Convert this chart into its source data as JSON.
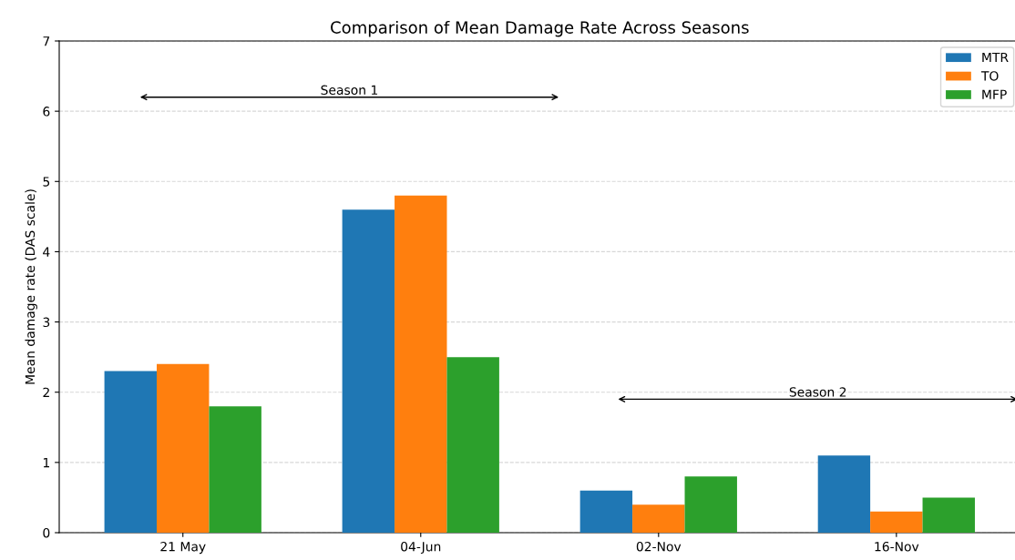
{
  "chart_data": {
    "type": "bar",
    "title": "Comparison of Mean Damage Rate Across Seasons",
    "ylabel": "Mean damage rate (DAS scale)",
    "categories": [
      "21 May",
      "04-Jun",
      "02-Nov",
      "16-Nov"
    ],
    "series": [
      {
        "name": "MTR",
        "color": "#1f77b4",
        "values": [
          2.3,
          4.6,
          0.6,
          1.1
        ]
      },
      {
        "name": "TO",
        "color": "#ff7f0e",
        "values": [
          2.4,
          4.8,
          0.4,
          0.3
        ]
      },
      {
        "name": "MFP",
        "color": "#2ca02c",
        "values": [
          1.8,
          2.5,
          0.8,
          0.5
        ]
      }
    ],
    "ylim": [
      0,
      7
    ],
    "yticks": [
      0,
      1,
      2,
      3,
      4,
      5,
      6,
      7
    ],
    "grid": "y",
    "legend": "top right",
    "annotations": [
      "Season 1",
      "Season 2"
    ]
  }
}
